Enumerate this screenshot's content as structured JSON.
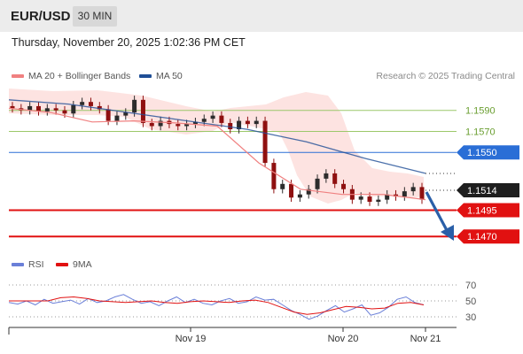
{
  "header": {
    "symbol": "EUR/USD",
    "timeframe": "30 MIN",
    "datetime": "Thursday, November 20, 2025 1:02:36 PM CET"
  },
  "legend": {
    "ma20_label": "MA 20 + Bollinger Bands",
    "ma20_color": "#f08080",
    "ma50_label": "MA 50",
    "ma50_color": "#1f4e96",
    "credit": "Research © 2025 Trading Central",
    "rsi_label": "RSI",
    "rsi_color": "#6a7fd8",
    "rsi9_label": "9MA",
    "rsi9_color": "#e11111"
  },
  "colors": {
    "up": "#2c2c2c",
    "down": "#8f1010",
    "band_fill": "#fde0de",
    "resistance": "#9cc86a",
    "pivot": "#2a6ed6",
    "support": "#e11111",
    "arrow": "#2a5fa8"
  },
  "chart_data": [
    {
      "type": "candlestick",
      "title": "EUR/USD",
      "timeframe": "30 MIN",
      "ylim": [
        1.1455,
        1.1615
      ],
      "x_ticks": [
        "Nov 19",
        "Nov 20",
        "Nov 21"
      ],
      "current_price": 1.1514,
      "key_levels": [
        {
          "value": 1.159,
          "label": "1.1590",
          "kind": "resistance"
        },
        {
          "value": 1.157,
          "label": "1.1570",
          "kind": "resistance"
        },
        {
          "value": 1.155,
          "label": "1.1550",
          "kind": "pivot"
        },
        {
          "value": 1.1495,
          "label": "1.1495",
          "kind": "support"
        },
        {
          "value": 1.147,
          "label": "1.1470",
          "kind": "support"
        }
      ],
      "close_path": [
        1.1592,
        1.159,
        1.1594,
        1.1589,
        1.1592,
        1.159,
        1.1587,
        1.1595,
        1.1598,
        1.1594,
        1.1591,
        1.158,
        1.1585,
        1.1588,
        1.16,
        1.1578,
        1.1575,
        1.158,
        1.1577,
        1.1575,
        1.1577,
        1.1579,
        1.1582,
        1.1585,
        1.1578,
        1.1572,
        1.158,
        1.1577,
        1.158,
        1.154,
        1.1515,
        1.152,
        1.1507,
        1.151,
        1.1515,
        1.1525,
        1.153,
        1.152,
        1.1515,
        1.1505,
        1.1508,
        1.1503,
        1.1505,
        1.151,
        1.1508,
        1.1513,
        1.1517,
        1.1505
      ],
      "ma50": [
        1.16,
        1.1596,
        1.1588,
        1.158,
        1.1572,
        1.156,
        1.1544,
        1.153
      ],
      "ma20": [
        1.1592,
        1.1588,
        1.1579,
        1.158,
        1.1578,
        1.1575,
        1.154,
        1.1515,
        1.151,
        1.151,
        1.1505
      ]
    },
    {
      "type": "line",
      "title": "RSI",
      "ylim": [
        20,
        80
      ],
      "y_ticks": [
        70,
        50,
        30
      ],
      "series": [
        {
          "name": "RSI",
          "values": [
            48,
            46,
            50,
            45,
            52,
            47,
            49,
            51,
            46,
            53,
            48,
            50,
            55,
            58,
            52,
            47,
            49,
            44,
            50,
            55,
            48,
            52,
            47,
            45,
            50,
            53,
            47,
            49,
            55,
            51,
            52,
            45,
            38,
            33,
            27,
            31,
            38,
            44,
            36,
            40,
            45,
            32,
            35,
            42,
            52,
            55,
            48,
            45
          ]
        },
        {
          "name": "9MA",
          "values": [
            50,
            50,
            50,
            50,
            54,
            55,
            53,
            50,
            49,
            48,
            49,
            50,
            48,
            47,
            49,
            50,
            49,
            48,
            50,
            51,
            48,
            42,
            36,
            33,
            35,
            39,
            43,
            42,
            40,
            41,
            47,
            48,
            45
          ]
        }
      ]
    }
  ]
}
